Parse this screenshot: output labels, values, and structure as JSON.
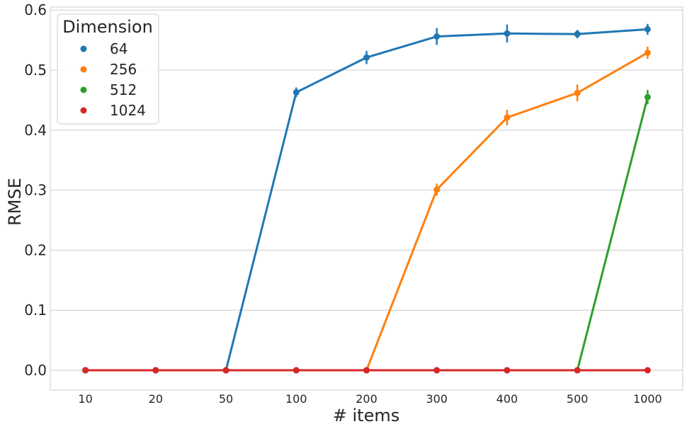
{
  "chart_data": {
    "type": "line",
    "xlabel": "# items",
    "ylabel": "RMSE",
    "categories": [
      "10",
      "20",
      "50",
      "100",
      "200",
      "300",
      "400",
      "500",
      "1000"
    ],
    "ylim": [
      -0.033,
      0.605
    ],
    "yticks": [
      0.0,
      0.1,
      0.2,
      0.3,
      0.4,
      0.5,
      0.6
    ],
    "ytick_labels": [
      "0.0",
      "0.1",
      "0.2",
      "0.3",
      "0.4",
      "0.5",
      "0.6"
    ],
    "grid": "horizontal",
    "legend": {
      "title": "Dimension",
      "placement": "top-left"
    },
    "series": [
      {
        "name": "64",
        "color": "#1f77b4",
        "values": [
          0.0,
          0.0,
          0.0,
          0.463,
          0.521,
          0.556,
          0.561,
          0.56,
          0.568
        ],
        "errors": [
          0.002,
          0.002,
          0.002,
          0.008,
          0.011,
          0.014,
          0.015,
          0.007,
          0.009
        ]
      },
      {
        "name": "256",
        "color": "#ff7f0e",
        "values": [
          0.0,
          0.0,
          0.0,
          0.0,
          0.0,
          0.301,
          0.421,
          0.462,
          0.529
        ],
        "errors": [
          0.002,
          0.002,
          0.002,
          0.002,
          0.002,
          0.01,
          0.013,
          0.014,
          0.01
        ]
      },
      {
        "name": "512",
        "color": "#2ca02c",
        "values": [
          0.0,
          0.0,
          0.0,
          0.0,
          0.0,
          0.0,
          0.0,
          0.0,
          0.455
        ],
        "errors": [
          0.002,
          0.002,
          0.002,
          0.002,
          0.002,
          0.002,
          0.002,
          0.002,
          0.012
        ]
      },
      {
        "name": "1024",
        "color": "#d62728",
        "values": [
          0.0,
          0.0,
          0.0,
          0.0,
          0.0,
          0.0,
          0.0,
          0.0,
          0.0
        ],
        "errors": [
          0.002,
          0.002,
          0.002,
          0.002,
          0.002,
          0.002,
          0.002,
          0.002,
          0.002
        ]
      }
    ]
  }
}
